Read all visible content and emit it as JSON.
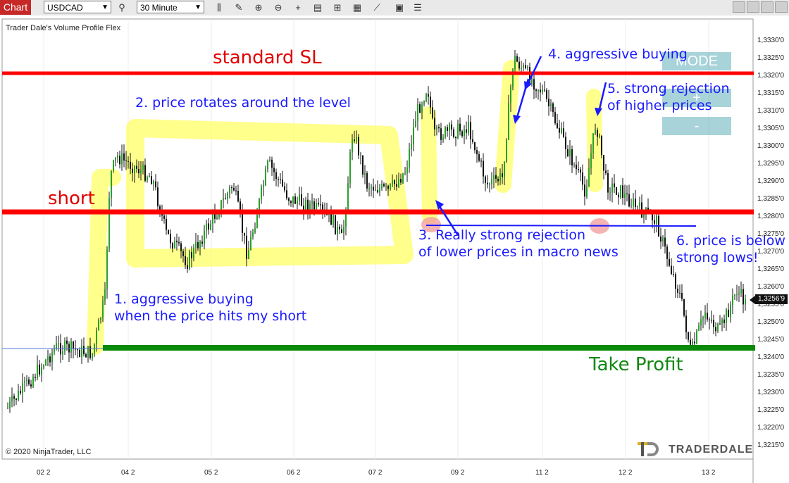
{
  "toolbar": {
    "tab_label": "Chart",
    "instrument": "USDCAD",
    "timeframe": "30 Minute",
    "icons": [
      "search-icon",
      "bar-chart-icon",
      "pencil-icon",
      "zoom-in-icon",
      "zoom-out-icon",
      "crosshair-icon",
      "properties-icon",
      "indicators-icon",
      "strategies-icon",
      "draw-icon",
      "options-icon",
      "list-icon"
    ]
  },
  "chart": {
    "indicator_name": "Trader Dale's Volume Profile Flex",
    "copyright": "© 2020 NinjaTrader, LLC",
    "logo_text": "TRADERDALE",
    "buttons": {
      "mode": "MODE",
      "plus": "+",
      "minus": "-"
    },
    "current_price": "1,3256'9",
    "price_axis": [
      "1,3330'0",
      "1,3325'0",
      "1,3320'0",
      "1,3315'0",
      "1,3310'0",
      "1,3305'0",
      "1,3300'0",
      "1,3295'0",
      "1,3290'0",
      "1,3285'0",
      "1,3280'0",
      "1,3275'0",
      "1,3270'0",
      "1,3265'0",
      "1,3260'0",
      "1,3255'0",
      "1,3250'0",
      "1,3245'0",
      "1,3240'0",
      "1,3235'0",
      "1,3230'0",
      "1,3225'0",
      "1,3220'0",
      "1,3215'0"
    ],
    "time_axis": [
      "02 2",
      "04 2",
      "05 2",
      "06 2",
      "07 2",
      "09 2",
      "11 2",
      "12 2",
      "13 2"
    ],
    "colors": {
      "short_line": "#ff0000",
      "sl_line": "#ff0000",
      "tp_line": "#0a8a0a",
      "highlight": "#ffff66",
      "annotation": "#1a1aff"
    }
  },
  "annotations": {
    "standard_sl": "standard SL",
    "short": "short",
    "take_profit": "Take Profit",
    "a1": "1. aggressive buying\nwhen the price hits my short",
    "a2": "2. price rotates around the level",
    "a3": "3. Really strong rejection\nof lower prices in macro news",
    "a4": "4. aggressive buying",
    "a5": "5. strong rejection\nof higher prices",
    "a6": "6. price is below\nstrong lows!"
  }
}
